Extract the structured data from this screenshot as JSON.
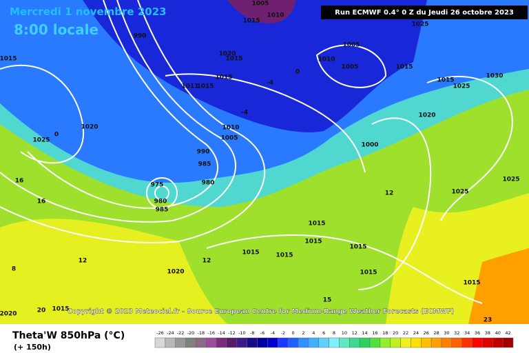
{
  "header": {
    "date": "Mercredi 1 novembre 2023",
    "time": "8:00 locale",
    "run": "Run ECMWF 0.4° 0 Z du Jeudi 26 octobre 2023"
  },
  "copyright": "Copyright © 2023 Meteociel.fr - Source European Centre for Medium-Range Weather Forecasts (ECMWF)",
  "map_labels": [
    "1005",
    "1010",
    "1015",
    "990",
    "1015",
    "1020",
    "1015",
    "1010",
    "1005",
    "1005",
    "1015",
    "1025",
    "1015",
    "1015",
    "1011",
    "1030",
    "1015",
    "1025",
    "1020",
    "1020",
    "1025",
    "1010",
    "1005",
    "1000",
    "990",
    "985",
    "980",
    "975",
    "980",
    "985",
    "1025",
    "1025",
    "1015",
    "1015",
    "1015",
    "1015",
    "1015",
    "1020",
    "1015",
    "1015",
    "16",
    "16",
    "12",
    "12",
    "8",
    "20",
    "23",
    "-4",
    "-4",
    "0",
    "0",
    "12",
    "15",
    "1015",
    "2020"
  ],
  "legend": {
    "title": "Theta'W 850hPa (°C)",
    "subtitle": "(+ 150h)",
    "ticks": [
      -26,
      -24,
      -22,
      -20,
      -18,
      -16,
      -14,
      -12,
      -10,
      -8,
      -6,
      -4,
      -2,
      0,
      2,
      4,
      6,
      8,
      10,
      12,
      14,
      16,
      18,
      20,
      22,
      24,
      26,
      28,
      30,
      32,
      34,
      36,
      38,
      40,
      42
    ],
    "colors": [
      "#d8d8d8",
      "#b8b8b8",
      "#989898",
      "#808080",
      "#8c6a8c",
      "#9c4a9c",
      "#7a2a7a",
      "#5a1a6a",
      "#3a1a8a",
      "#1a0a8a",
      "#0000a0",
      "#0000d0",
      "#1a3aff",
      "#2060ff",
      "#3090ff",
      "#40b0ff",
      "#60d0ff",
      "#80f0ff",
      "#60e8c0",
      "#40d890",
      "#30d060",
      "#50e040",
      "#90f030",
      "#c0f020",
      "#f0f020",
      "#ffe000",
      "#ffc000",
      "#ffa000",
      "#ff8000",
      "#ff6000",
      "#ff3000",
      "#ff0000",
      "#e00000",
      "#c00000",
      "#a00000"
    ]
  }
}
